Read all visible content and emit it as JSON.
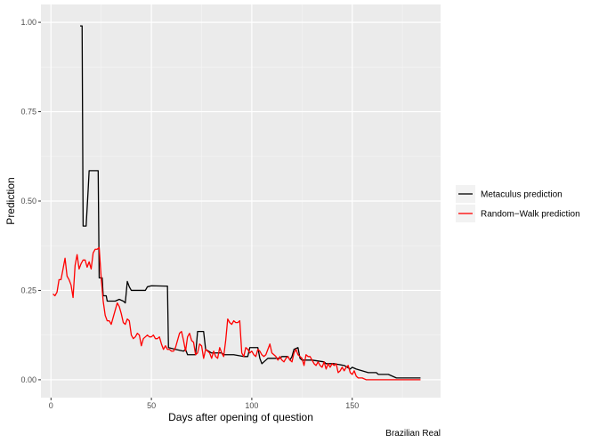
{
  "chart_data": {
    "type": "line",
    "xlabel": "Days after opening of question",
    "ylabel": "Prediction",
    "caption": "Brazilian Real",
    "xlim": [
      -5,
      194
    ],
    "ylim": [
      -0.05,
      1.05
    ],
    "xticks": [
      0,
      50,
      100,
      150
    ],
    "yticks": [
      0.0,
      0.25,
      0.5,
      0.75,
      1.0
    ],
    "ytick_labels": [
      "0.00",
      "0.25",
      "0.50",
      "0.75",
      "1.00"
    ],
    "grid": true,
    "legend_position": "right",
    "series": [
      {
        "name": "Metaculus prediction",
        "color": "#000000",
        "points": [
          [
            14.5,
            0.99
          ],
          [
            15.5,
            0.99
          ],
          [
            16,
            0.43
          ],
          [
            17.5,
            0.43
          ],
          [
            18.5,
            0.53
          ],
          [
            19,
            0.585
          ],
          [
            23.5,
            0.585
          ],
          [
            24,
            0.285
          ],
          [
            25.5,
            0.285
          ],
          [
            26,
            0.235
          ],
          [
            27.5,
            0.235
          ],
          [
            28,
            0.22
          ],
          [
            32,
            0.22
          ],
          [
            34,
            0.225
          ],
          [
            36,
            0.22
          ],
          [
            37,
            0.215
          ],
          [
            38,
            0.275
          ],
          [
            39,
            0.26
          ],
          [
            40,
            0.25
          ],
          [
            47,
            0.25
          ],
          [
            48,
            0.26
          ],
          [
            50,
            0.263
          ],
          [
            57,
            0.262
          ],
          [
            58,
            0.262
          ],
          [
            58.5,
            0.09
          ],
          [
            62,
            0.085
          ],
          [
            66,
            0.08
          ],
          [
            67,
            0.085
          ],
          [
            68,
            0.07
          ],
          [
            72,
            0.07
          ],
          [
            73,
            0.135
          ],
          [
            76,
            0.135
          ],
          [
            77,
            0.085
          ],
          [
            80,
            0.075
          ],
          [
            85,
            0.075
          ],
          [
            86,
            0.07
          ],
          [
            90,
            0.07
          ],
          [
            91,
            0.07
          ],
          [
            96,
            0.065
          ],
          [
            98,
            0.065
          ],
          [
            99,
            0.09
          ],
          [
            103,
            0.09
          ],
          [
            104,
            0.06
          ],
          [
            105,
            0.045
          ],
          [
            106,
            0.05
          ],
          [
            108,
            0.06
          ],
          [
            114,
            0.06
          ],
          [
            115,
            0.065
          ],
          [
            118,
            0.065
          ],
          [
            119,
            0.055
          ],
          [
            120,
            0.065
          ],
          [
            121,
            0.085
          ],
          [
            123,
            0.09
          ],
          [
            124,
            0.06
          ],
          [
            125,
            0.055
          ],
          [
            130,
            0.055
          ],
          [
            136,
            0.05
          ],
          [
            137,
            0.045
          ],
          [
            141,
            0.045
          ],
          [
            146,
            0.04
          ],
          [
            149,
            0.03
          ],
          [
            150,
            0.035
          ],
          [
            152,
            0.03
          ],
          [
            155,
            0.025
          ],
          [
            158,
            0.02
          ],
          [
            162,
            0.02
          ],
          [
            163,
            0.015
          ],
          [
            168,
            0.015
          ],
          [
            172,
            0.005
          ],
          [
            184,
            0.005
          ]
        ]
      },
      {
        "name": "Random−Walk prediction",
        "color": "#ff0000",
        "points": [
          [
            1,
            0.24
          ],
          [
            2,
            0.235
          ],
          [
            3,
            0.245
          ],
          [
            4,
            0.28
          ],
          [
            5,
            0.28
          ],
          [
            6,
            0.31
          ],
          [
            7,
            0.34
          ],
          [
            8,
            0.29
          ],
          [
            9,
            0.28
          ],
          [
            10,
            0.265
          ],
          [
            11,
            0.23
          ],
          [
            12,
            0.32
          ],
          [
            13,
            0.35
          ],
          [
            14,
            0.31
          ],
          [
            15,
            0.325
          ],
          [
            16,
            0.335
          ],
          [
            17,
            0.335
          ],
          [
            18,
            0.315
          ],
          [
            19,
            0.33
          ],
          [
            20,
            0.31
          ],
          [
            21,
            0.355
          ],
          [
            22,
            0.365
          ],
          [
            23,
            0.365
          ],
          [
            24,
            0.37
          ],
          [
            25,
            0.285
          ],
          [
            26,
            0.22
          ],
          [
            27,
            0.18
          ],
          [
            28,
            0.165
          ],
          [
            29,
            0.165
          ],
          [
            30,
            0.155
          ],
          [
            31,
            0.175
          ],
          [
            32,
            0.195
          ],
          [
            33,
            0.215
          ],
          [
            34,
            0.205
          ],
          [
            35,
            0.185
          ],
          [
            36,
            0.16
          ],
          [
            37,
            0.155
          ],
          [
            38,
            0.17
          ],
          [
            39,
            0.165
          ],
          [
            40,
            0.125
          ],
          [
            41,
            0.115
          ],
          [
            42,
            0.12
          ],
          [
            43,
            0.13
          ],
          [
            44,
            0.125
          ],
          [
            45,
            0.095
          ],
          [
            46,
            0.115
          ],
          [
            47,
            0.12
          ],
          [
            48,
            0.125
          ],
          [
            49,
            0.12
          ],
          [
            50,
            0.12
          ],
          [
            51,
            0.125
          ],
          [
            52,
            0.115
          ],
          [
            53,
            0.115
          ],
          [
            54,
            0.12
          ],
          [
            55,
            0.1
          ],
          [
            56,
            0.085
          ],
          [
            57,
            0.095
          ],
          [
            58,
            0.085
          ],
          [
            59,
            0.085
          ],
          [
            60,
            0.08
          ],
          [
            61,
            0.08
          ],
          [
            62,
            0.09
          ],
          [
            63,
            0.11
          ],
          [
            64,
            0.13
          ],
          [
            65,
            0.135
          ],
          [
            66,
            0.11
          ],
          [
            67,
            0.08
          ],
          [
            68,
            0.12
          ],
          [
            69,
            0.13
          ],
          [
            70,
            0.11
          ],
          [
            71,
            0.105
          ],
          [
            72,
            0.07
          ],
          [
            73,
            0.075
          ],
          [
            74,
            0.1
          ],
          [
            75,
            0.095
          ],
          [
            76,
            0.06
          ],
          [
            77,
            0.085
          ],
          [
            78,
            0.08
          ],
          [
            79,
            0.075
          ],
          [
            80,
            0.06
          ],
          [
            81,
            0.08
          ],
          [
            82,
            0.065
          ],
          [
            83,
            0.06
          ],
          [
            84,
            0.09
          ],
          [
            85,
            0.075
          ],
          [
            86,
            0.065
          ],
          [
            87,
            0.11
          ],
          [
            88,
            0.17
          ],
          [
            89,
            0.16
          ],
          [
            90,
            0.155
          ],
          [
            91,
            0.165
          ],
          [
            92,
            0.16
          ],
          [
            93,
            0.16
          ],
          [
            94,
            0.165
          ],
          [
            95,
            0.075
          ],
          [
            96,
            0.065
          ],
          [
            97,
            0.09
          ],
          [
            98,
            0.085
          ],
          [
            99,
            0.075
          ],
          [
            100,
            0.08
          ],
          [
            101,
            0.07
          ],
          [
            102,
            0.065
          ],
          [
            103,
            0.085
          ],
          [
            104,
            0.08
          ],
          [
            105,
            0.07
          ],
          [
            106,
            0.065
          ],
          [
            107,
            0.07
          ],
          [
            108,
            0.085
          ],
          [
            109,
            0.1
          ],
          [
            110,
            0.075
          ],
          [
            111,
            0.07
          ],
          [
            112,
            0.065
          ],
          [
            113,
            0.055
          ],
          [
            114,
            0.065
          ],
          [
            115,
            0.055
          ],
          [
            116,
            0.05
          ],
          [
            117,
            0.06
          ],
          [
            118,
            0.065
          ],
          [
            119,
            0.055
          ],
          [
            120,
            0.05
          ],
          [
            121,
            0.075
          ],
          [
            122,
            0.085
          ],
          [
            123,
            0.07
          ],
          [
            124,
            0.065
          ],
          [
            125,
            0.06
          ],
          [
            126,
            0.04
          ],
          [
            127,
            0.07
          ],
          [
            128,
            0.065
          ],
          [
            129,
            0.065
          ],
          [
            130,
            0.055
          ],
          [
            131,
            0.045
          ],
          [
            132,
            0.04
          ],
          [
            133,
            0.05
          ],
          [
            134,
            0.04
          ],
          [
            135,
            0.035
          ],
          [
            136,
            0.05
          ],
          [
            137,
            0.03
          ],
          [
            138,
            0.045
          ],
          [
            139,
            0.035
          ],
          [
            140,
            0.045
          ],
          [
            141,
            0.04
          ],
          [
            142,
            0.045
          ],
          [
            143,
            0.02
          ],
          [
            144,
            0.025
          ],
          [
            145,
            0.035
          ],
          [
            146,
            0.025
          ],
          [
            147,
            0.035
          ],
          [
            148,
            0.04
          ],
          [
            149,
            0.02
          ],
          [
            150,
            0.015
          ],
          [
            151,
            0.025
          ],
          [
            152,
            0.01
          ],
          [
            153,
            0.005
          ],
          [
            155,
            0.005
          ],
          [
            157,
            0.0
          ],
          [
            184,
            0.0
          ]
        ]
      }
    ]
  }
}
